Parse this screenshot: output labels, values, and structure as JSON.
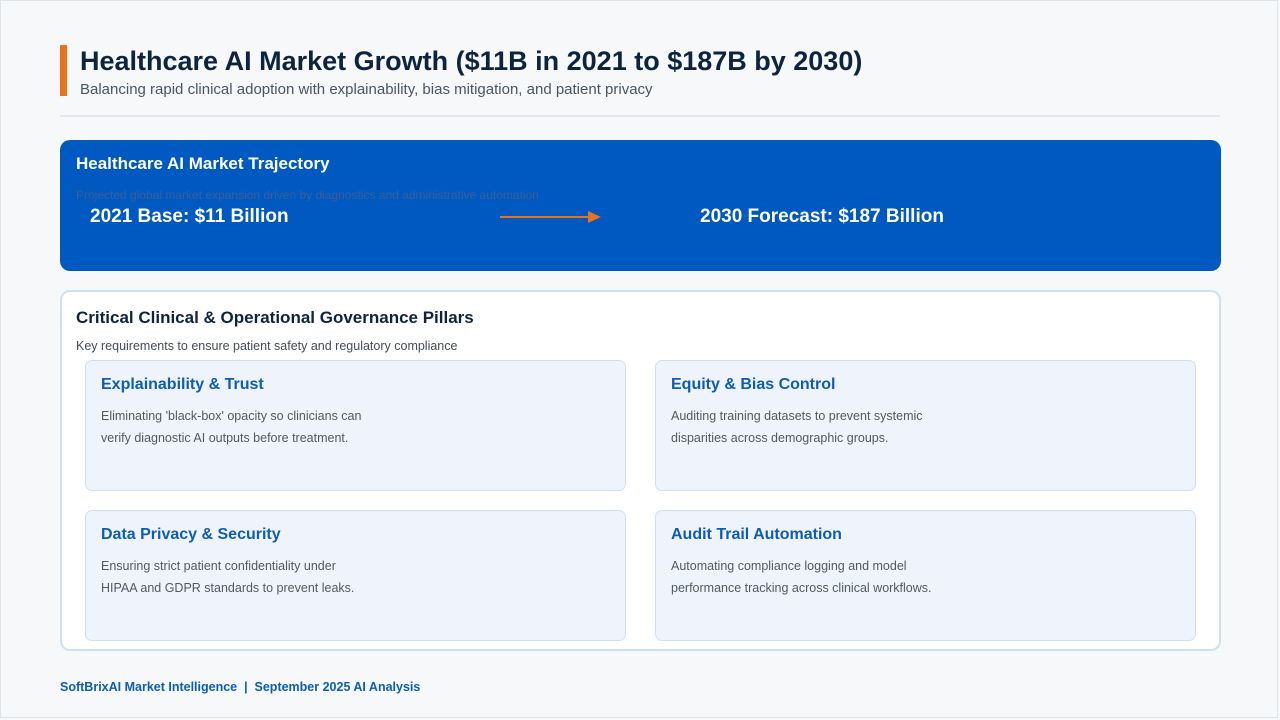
{
  "header": {
    "title": "Healthcare AI Market Growth ($11B in 2021 to $187B by 2030)",
    "subtitle": "Balancing rapid clinical adoption with explainability, bias mitigation, and patient privacy"
  },
  "trajectory": {
    "title": "Healthcare AI Market Trajectory",
    "subtitle": "Projected global market expansion driven by diagnostics and administrative automation",
    "base_label": "2021 Base: $11 Billion",
    "forecast_label": "2030 Forecast: $187 Billion"
  },
  "pillars": {
    "title": "Critical Clinical & Operational Governance Pillars",
    "subtitle": "Key requirements to ensure patient safety and regulatory compliance",
    "cards": [
      {
        "title": "Explainability & Trust",
        "body": "Eliminating 'black-box' opacity so clinicians can verify diagnostic AI outputs before treatment."
      },
      {
        "title": "Equity & Bias Control",
        "body": "Auditing training datasets to prevent systemic disparities across demographic groups."
      },
      {
        "title": "Data Privacy & Security",
        "body": "Ensuring strict patient confidentiality under HIPAA and GDPR standards to prevent leaks."
      },
      {
        "title": "Audit Trail Automation",
        "body": "Automating compliance logging and model performance tracking across clinical workflows."
      }
    ]
  },
  "footer": {
    "text": "SoftBrixAI Market Intelligence  |  September 2025 AI Analysis"
  },
  "colors": {
    "accent": "#e8731a",
    "primary_blue": "#0059c1",
    "card_title_blue": "#0b5db8",
    "heading_navy": "#0d2340"
  },
  "icons": {
    "arrow": "arrow-right-icon"
  }
}
